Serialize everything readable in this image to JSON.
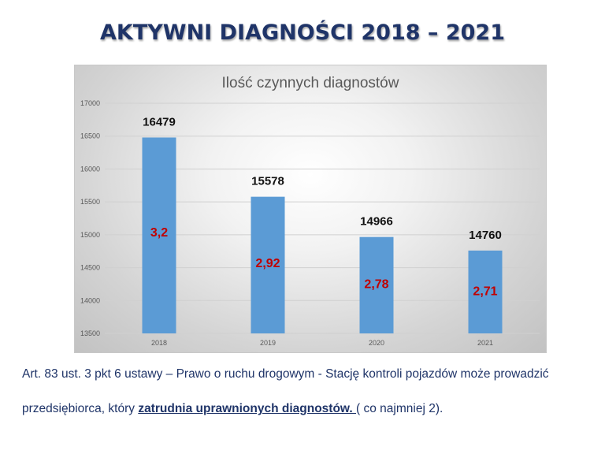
{
  "slide": {
    "title": "AKTYWNI DIAGNOŚCI 2018 – 2021"
  },
  "chart_data": {
    "type": "bar",
    "title": "Ilość czynnych diagnostów",
    "categories": [
      "2018",
      "2019",
      "2020",
      "2021"
    ],
    "values": [
      16479,
      15578,
      14966,
      14760
    ],
    "value_labels": [
      "16479",
      "15578",
      "14966",
      "14760"
    ],
    "inner_labels": [
      "3,2",
      "2,92",
      "2,78",
      "2,71"
    ],
    "inner_values": [
      3.2,
      2.92,
      2.78,
      2.71
    ],
    "ylim": [
      13500,
      17000
    ],
    "yticks": [
      13500,
      14000,
      14500,
      15000,
      15500,
      16000,
      16500,
      17000
    ],
    "grid": true,
    "legend": "none",
    "bar_color": "#5b9bd5",
    "inner_label_color": "#c00000",
    "xlabel": "",
    "ylabel": ""
  },
  "footer": {
    "line1": "Art. 83 ust. 3 pkt 6 ustawy – Prawo o ruchu drogowym - Stację kontroli pojazdów może prowadzić",
    "line2_pre": "przedsiębiorca, który ",
    "line2_emph": "zatrudnia uprawnionych diagnostów. ",
    "line2_post": "( co najmniej 2)."
  }
}
